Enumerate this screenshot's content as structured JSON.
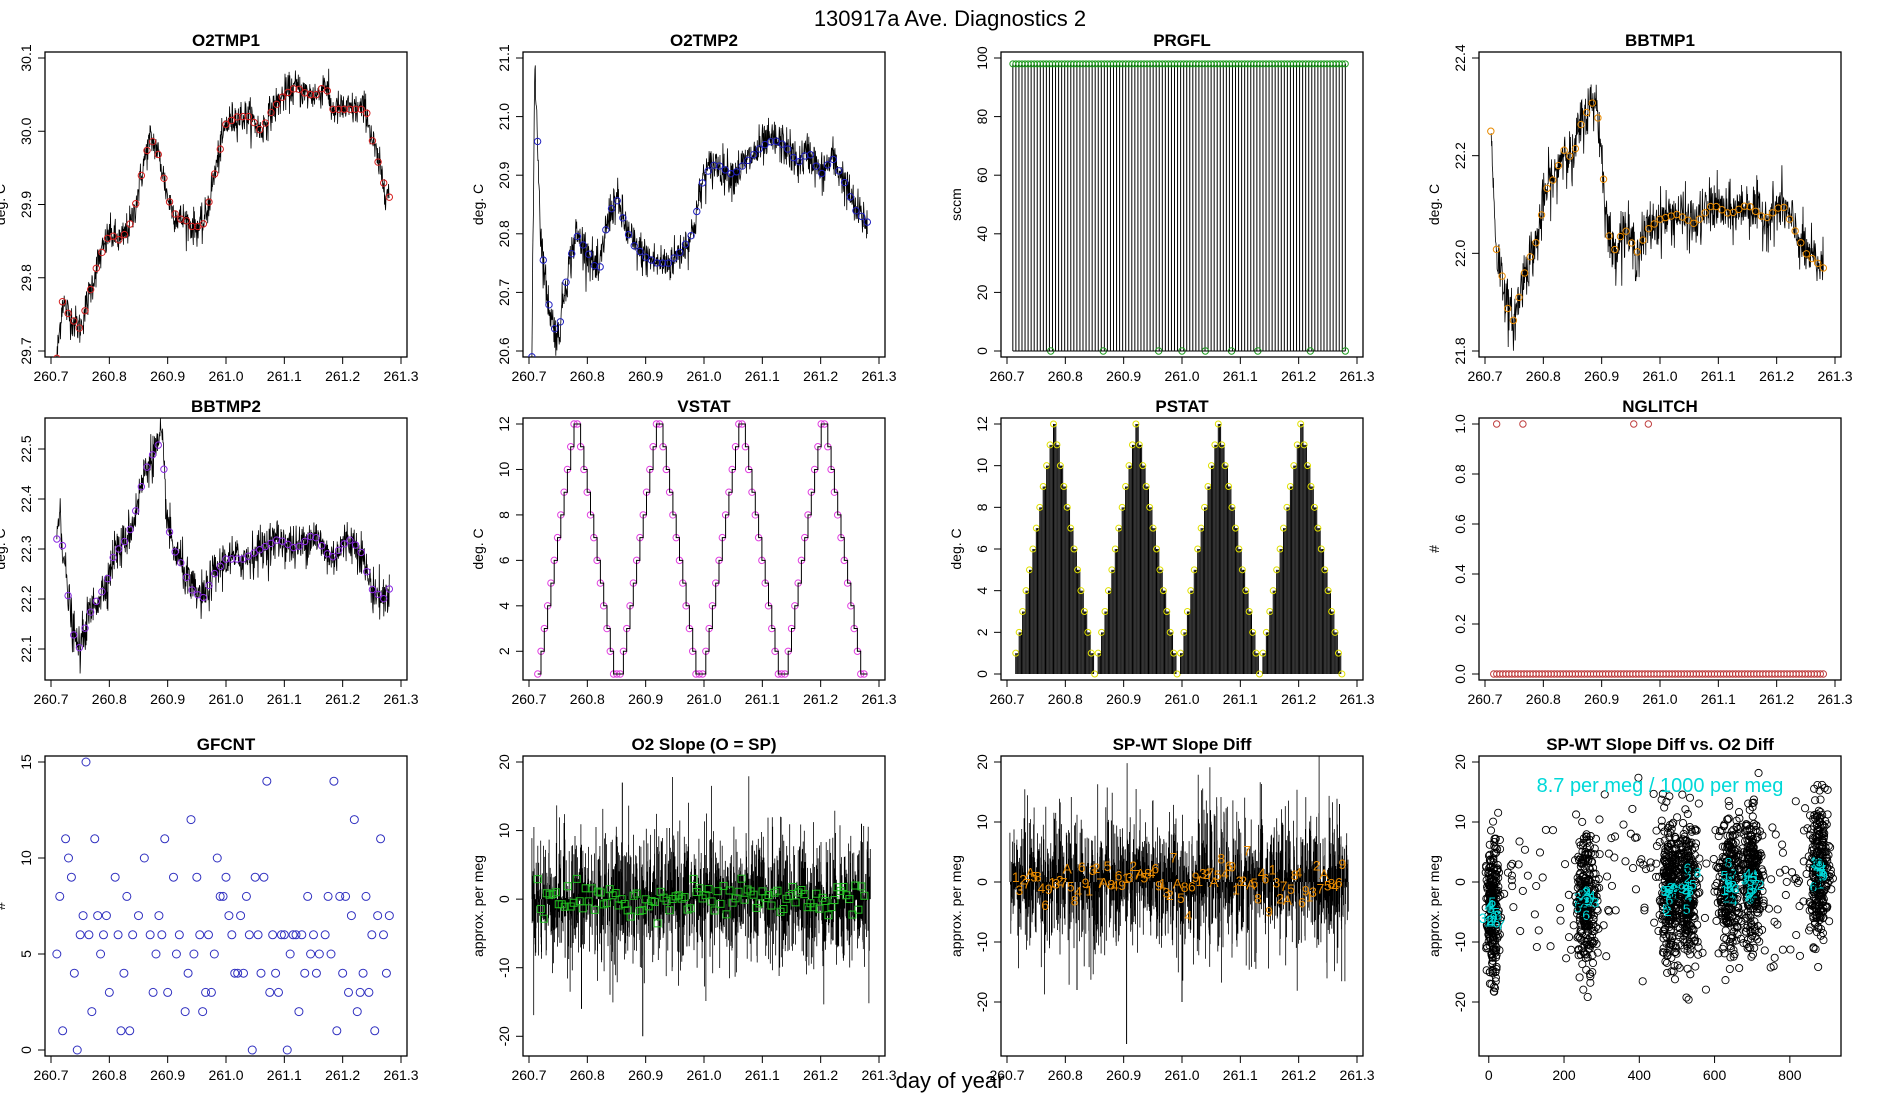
{
  "figure": {
    "title": "130917a   Ave. Diagnostics 2",
    "xlabel": "day of year"
  },
  "chart_data": [
    {
      "id": "o2tmp1",
      "type": "line",
      "title": "O2TMP1",
      "ylabel": "deg. C",
      "xlim": [
        260.7,
        261.3
      ],
      "ylim": [
        29.7,
        30.1
      ],
      "xticks": [
        "260.7",
        "260.8",
        "260.9",
        "261.0",
        "261.1",
        "261.2",
        "261.3"
      ],
      "yticks": [
        "29.7",
        "29.8",
        "29.9",
        "30.0",
        "30.1"
      ],
      "marker": "circle",
      "marker_color": "#d62020",
      "x": [
        260.71,
        260.72,
        260.73,
        260.74,
        260.75,
        260.76,
        260.78,
        260.8,
        260.82,
        260.84,
        260.86,
        260.87,
        260.88,
        260.89,
        260.9,
        260.91,
        260.92,
        260.93,
        260.94,
        260.95,
        260.96,
        260.97,
        260.98,
        261.0,
        261.02,
        261.04,
        261.06,
        261.08,
        261.1,
        261.12,
        261.14,
        261.16,
        261.17,
        261.18,
        261.2,
        261.22,
        261.24,
        261.25,
        261.26,
        261.27,
        261.28
      ],
      "y": [
        29.69,
        29.77,
        29.75,
        29.74,
        29.73,
        29.76,
        29.82,
        29.86,
        29.85,
        29.88,
        29.96,
        29.99,
        29.98,
        29.95,
        29.91,
        29.89,
        29.88,
        29.88,
        29.87,
        29.87,
        29.87,
        29.9,
        29.94,
        30.01,
        30.02,
        30.02,
        30.0,
        30.03,
        30.05,
        30.06,
        30.05,
        30.05,
        30.07,
        30.03,
        30.03,
        30.03,
        30.03,
        29.99,
        29.96,
        29.93,
        29.91
      ],
      "noise": 0.012
    },
    {
      "id": "o2tmp2",
      "type": "line",
      "title": "O2TMP2",
      "ylabel": "deg. C",
      "xlim": [
        260.7,
        261.3
      ],
      "ylim": [
        20.6,
        21.1
      ],
      "xticks": [
        "260.7",
        "260.8",
        "260.9",
        "261.0",
        "261.1",
        "261.2",
        "261.3"
      ],
      "yticks": [
        "20.6",
        "20.7",
        "20.8",
        "20.9",
        "21.0",
        "21.1"
      ],
      "marker": "circle",
      "marker_color": "#2020c0",
      "x": [
        260.705,
        260.71,
        260.715,
        260.72,
        260.73,
        260.74,
        260.75,
        260.76,
        260.77,
        260.78,
        260.8,
        260.82,
        260.83,
        260.84,
        260.85,
        260.86,
        260.87,
        260.88,
        260.89,
        260.9,
        260.92,
        260.94,
        260.96,
        260.98,
        261.0,
        261.02,
        261.05,
        261.08,
        261.1,
        261.12,
        261.14,
        261.16,
        261.18,
        261.2,
        261.22,
        261.24,
        261.26,
        261.28
      ],
      "y": [
        20.59,
        21.1,
        20.95,
        20.8,
        20.7,
        20.65,
        20.62,
        20.7,
        20.75,
        20.8,
        20.77,
        20.73,
        20.8,
        20.84,
        20.86,
        20.83,
        20.8,
        20.78,
        20.77,
        20.76,
        20.75,
        20.75,
        20.77,
        20.8,
        20.9,
        20.92,
        20.9,
        20.93,
        20.95,
        20.96,
        20.95,
        20.92,
        20.94,
        20.9,
        20.93,
        20.89,
        20.84,
        20.82
      ],
      "noise": 0.018
    },
    {
      "id": "prgfl",
      "type": "spikes",
      "title": "PRGFL",
      "ylabel": "sccm",
      "xlim": [
        260.7,
        261.3
      ],
      "ylim": [
        0,
        100
      ],
      "xticks": [
        "260.7",
        "260.8",
        "260.9",
        "261.0",
        "261.1",
        "261.2",
        "261.3"
      ],
      "yticks": [
        "0",
        "20",
        "40",
        "60",
        "80",
        "100"
      ],
      "marker": "circle",
      "marker_color": "#1f9e1f",
      "high": 98,
      "low": 0,
      "start": 260.71,
      "end": 261.28,
      "count": 110,
      "zeros_x": [
        260.775,
        260.865,
        260.96,
        261.0,
        261.04,
        261.085,
        261.13,
        261.22,
        261.28
      ]
    },
    {
      "id": "bbtmp1",
      "type": "line",
      "title": "BBTMP1",
      "ylabel": "deg. C",
      "xlim": [
        260.7,
        261.3
      ],
      "ylim": [
        21.8,
        22.4
      ],
      "xticks": [
        "260.7",
        "260.8",
        "260.9",
        "261.0",
        "261.1",
        "261.2",
        "261.3"
      ],
      "yticks": [
        "21.8",
        "22.0",
        "22.2",
        "22.4"
      ],
      "marker": "circle",
      "marker_color": "#e88a00",
      "x": [
        260.71,
        260.715,
        260.72,
        260.73,
        260.74,
        260.75,
        260.76,
        260.77,
        260.78,
        260.79,
        260.8,
        260.81,
        260.82,
        260.83,
        260.84,
        260.85,
        260.86,
        260.87,
        260.88,
        260.89,
        260.9,
        260.91,
        260.92,
        260.93,
        260.94,
        260.96,
        260.98,
        261.0,
        261.03,
        261.06,
        261.09,
        261.12,
        261.15,
        261.18,
        261.21,
        261.23,
        261.25,
        261.27,
        261.28
      ],
      "y": [
        22.25,
        22.12,
        22.0,
        21.95,
        21.88,
        21.86,
        21.92,
        21.97,
        22.0,
        22.03,
        22.1,
        22.15,
        22.15,
        22.2,
        22.22,
        22.18,
        22.25,
        22.28,
        22.3,
        22.32,
        22.2,
        22.05,
        22.0,
        22.03,
        22.05,
        22.0,
        22.05,
        22.07,
        22.08,
        22.06,
        22.1,
        22.08,
        22.1,
        22.07,
        22.1,
        22.05,
        22.0,
        21.98,
        21.97
      ],
      "noise": 0.028
    },
    {
      "id": "bbtmp2",
      "type": "line",
      "title": "BBTMP2",
      "ylabel": "deg. C",
      "xlim": [
        260.7,
        261.3
      ],
      "ylim": [
        22.05,
        22.55
      ],
      "xticks": [
        "260.7",
        "260.8",
        "260.9",
        "261.0",
        "261.1",
        "261.2",
        "261.3"
      ],
      "yticks": [
        "22.1",
        "22.2",
        "22.3",
        "22.4",
        "22.5"
      ],
      "marker": "circle",
      "marker_color": "#8a2be2",
      "x": [
        260.71,
        260.715,
        260.72,
        260.73,
        260.74,
        260.75,
        260.76,
        260.77,
        260.78,
        260.79,
        260.8,
        260.81,
        260.82,
        260.84,
        260.85,
        260.86,
        260.87,
        260.88,
        260.89,
        260.9,
        260.91,
        260.92,
        260.94,
        260.96,
        260.98,
        261.0,
        261.03,
        261.06,
        261.09,
        261.12,
        261.15,
        261.18,
        261.21,
        261.23,
        261.25,
        261.27,
        261.28
      ],
      "y": [
        22.32,
        22.4,
        22.3,
        22.2,
        22.12,
        22.1,
        22.15,
        22.18,
        22.2,
        22.22,
        22.25,
        22.3,
        22.3,
        22.35,
        22.4,
        22.45,
        22.48,
        22.5,
        22.52,
        22.35,
        22.3,
        22.28,
        22.22,
        22.2,
        22.25,
        22.28,
        22.28,
        22.3,
        22.32,
        22.3,
        22.33,
        22.28,
        22.32,
        22.3,
        22.22,
        22.2,
        22.22
      ],
      "noise": 0.022
    },
    {
      "id": "vstat",
      "type": "step",
      "title": "VSTAT",
      "ylabel": "deg. C",
      "xlim": [
        260.7,
        261.3
      ],
      "ylim": [
        1,
        12
      ],
      "xticks": [
        "260.7",
        "260.8",
        "260.9",
        "261.0",
        "261.1",
        "261.2",
        "261.3"
      ],
      "yticks": [
        "2",
        "4",
        "6",
        "8",
        "10",
        "12"
      ],
      "marker": "circle",
      "marker_color": "#e040e0",
      "start": 260.715,
      "end": 261.28,
      "pattern": [
        1,
        2,
        3,
        4,
        5,
        6,
        7,
        8,
        9,
        10,
        11,
        12,
        12,
        11,
        10,
        9,
        8,
        7,
        6,
        5,
        4,
        3,
        2,
        1,
        1
      ]
    },
    {
      "id": "pstat",
      "type": "spikes_tri",
      "title": "PSTAT",
      "ylabel": "deg. C",
      "xlim": [
        260.7,
        261.3
      ],
      "ylim": [
        0,
        12
      ],
      "xticks": [
        "260.7",
        "260.8",
        "260.9",
        "261.0",
        "261.1",
        "261.2",
        "261.3"
      ],
      "yticks": [
        "0",
        "2",
        "4",
        "6",
        "8",
        "10",
        "12"
      ],
      "marker": "circle",
      "marker_color": "#e0e000",
      "start": 260.715,
      "end": 261.28,
      "pattern": [
        1,
        2,
        3,
        4,
        5,
        6,
        7,
        8,
        9,
        10,
        11,
        12,
        11,
        10,
        9,
        8,
        7,
        6,
        5,
        4,
        3,
        2,
        1,
        0
      ]
    },
    {
      "id": "nglitch",
      "type": "scatter",
      "title": "NGLITCH",
      "ylabel": "#",
      "xlim": [
        260.7,
        261.3
      ],
      "ylim": [
        0,
        1
      ],
      "xticks": [
        "260.7",
        "260.8",
        "260.9",
        "261.0",
        "261.1",
        "261.2",
        "261.3"
      ],
      "yticks": [
        "0.0",
        "0.2",
        "0.4",
        "0.6",
        "0.8",
        "1.0"
      ],
      "marker": "circle",
      "marker_color": "#c04040",
      "ones_x": [
        260.72,
        260.765,
        260.955,
        260.98
      ],
      "baseline": 0,
      "start": 260.715,
      "end": 261.28,
      "count": 110
    },
    {
      "id": "gfcnt",
      "type": "scatter",
      "title": "GFCNT",
      "ylabel": "#",
      "xlim": [
        260.7,
        261.3
      ],
      "ylim": [
        0,
        15
      ],
      "xticks": [
        "260.7",
        "260.8",
        "260.9",
        "261.0",
        "261.1",
        "261.2",
        "261.3"
      ],
      "yticks": [
        "0",
        "5",
        "10",
        "15"
      ],
      "marker": "circle",
      "marker_color": "#3030c0",
      "x": [
        260.71,
        260.715,
        260.72,
        260.725,
        260.73,
        260.735,
        260.74,
        260.745,
        260.75,
        260.755,
        260.76,
        260.765,
        260.77,
        260.775,
        260.78,
        260.785,
        260.79,
        260.795,
        260.8,
        260.81,
        260.815,
        260.82,
        260.825,
        260.83,
        260.835,
        260.84,
        260.85,
        260.86,
        260.87,
        260.875,
        260.88,
        260.885,
        260.89,
        260.895,
        260.9,
        260.91,
        260.915,
        260.92,
        260.93,
        260.935,
        260.94,
        260.945,
        260.95,
        260.955,
        260.96,
        260.965,
        260.97,
        260.975,
        260.98,
        260.985,
        260.99,
        260.995,
        261.0,
        261.005,
        261.01,
        261.015,
        261.02,
        261.025,
        261.03,
        261.035,
        261.04,
        261.045,
        261.05,
        261.055,
        261.06,
        261.065,
        261.07,
        261.075,
        261.08,
        261.085,
        261.09,
        261.095,
        261.1,
        261.105,
        261.11,
        261.115,
        261.12,
        261.125,
        261.13,
        261.135,
        261.14,
        261.145,
        261.15,
        261.155,
        261.16,
        261.17,
        261.175,
        261.18,
        261.185,
        261.19,
        261.195,
        261.2,
        261.205,
        261.21,
        261.215,
        261.22,
        261.225,
        261.23,
        261.235,
        261.24,
        261.245,
        261.25,
        261.255,
        261.26,
        261.265,
        261.27,
        261.275,
        261.28
      ],
      "y": [
        5,
        8,
        1,
        11,
        10,
        9,
        4,
        0,
        6,
        7,
        15,
        6,
        2,
        11,
        7,
        5,
        6,
        7,
        3,
        9,
        6,
        1,
        4,
        8,
        1,
        6,
        7,
        10,
        6,
        3,
        5,
        7,
        6,
        11,
        3,
        9,
        5,
        6,
        2,
        4,
        12,
        5,
        9,
        6,
        2,
        3,
        6,
        3,
        5,
        10,
        8,
        8,
        9,
        7,
        6,
        4,
        4,
        7,
        4,
        8,
        6,
        0,
        9,
        6,
        4,
        9,
        14,
        3,
        6,
        4,
        3,
        6,
        6,
        0,
        5,
        6,
        6,
        2,
        6,
        4,
        8,
        5,
        6,
        4,
        5,
        6,
        8,
        5,
        14,
        1,
        8,
        4,
        8,
        3,
        7,
        12,
        2,
        3,
        4,
        8,
        3,
        6,
        1,
        7,
        11,
        6,
        4,
        7
      ],
      "jitter_note": "visible points"
    },
    {
      "id": "o2slope",
      "type": "noise",
      "title": "O2 Slope (O = SP)",
      "ylabel": "approx. per meg",
      "xlim": [
        260.7,
        261.3
      ],
      "ylim": [
        -22,
        20
      ],
      "xticks": [
        "260.7",
        "260.8",
        "260.9",
        "261.0",
        "261.1",
        "261.2",
        "261.3"
      ],
      "yticks": [
        "-20",
        "-10",
        "0",
        "10",
        "20"
      ],
      "marker": "square",
      "marker_color": "#20c020",
      "start": 260.705,
      "end": 261.285,
      "center": 0,
      "spread": 5,
      "spikes": [
        [
          260.86,
          17
        ],
        [
          260.895,
          -20
        ],
        [
          260.79,
          -16
        ],
        [
          261.27,
          11
        ]
      ]
    },
    {
      "id": "spwt",
      "type": "noise_labels",
      "title": "SP-WT Slope Diff",
      "ylabel": "approx. per meg",
      "xlim": [
        260.7,
        261.3
      ],
      "ylim": [
        -28,
        20
      ],
      "xticks": [
        "260.7",
        "260.8",
        "260.9",
        "261.0",
        "261.1",
        "261.2",
        "261.3"
      ],
      "yticks": [
        "-20",
        "-10",
        "0",
        "10",
        "20"
      ],
      "label_color": "#e88a00",
      "start": 260.705,
      "end": 261.285,
      "center": 0,
      "spread": 6,
      "spikes": [
        [
          260.905,
          -27
        ],
        [
          260.82,
          -18
        ],
        [
          261.0,
          -20
        ],
        [
          261.27,
          13
        ]
      ],
      "labels": [
        "1",
        "3",
        "2",
        "7",
        "A",
        "5",
        "8",
        "4",
        "6",
        "9"
      ]
    },
    {
      "id": "spwt_vs_o2",
      "type": "cluster_scatter",
      "title": "SP-WT Slope Diff vs. O2 Diff",
      "ylabel": "approx. per meg",
      "xlim": [
        -10,
        920
      ],
      "ylim": [
        -28,
        20
      ],
      "xticks": [
        "0",
        "200",
        "400",
        "600",
        "800"
      ],
      "yticks": [
        "-20",
        "-10",
        "0",
        "10",
        "20"
      ],
      "annotation": "8.7 per meg / 1000 per meg",
      "annotation_color": "#00d8d8",
      "clusters_x": [
        10,
        260,
        480,
        530,
        640,
        700,
        880
      ],
      "cluster_means_y": [
        -5,
        -3,
        -2,
        -1,
        -1,
        0,
        2
      ],
      "label_color": "#00d8d8"
    }
  ]
}
